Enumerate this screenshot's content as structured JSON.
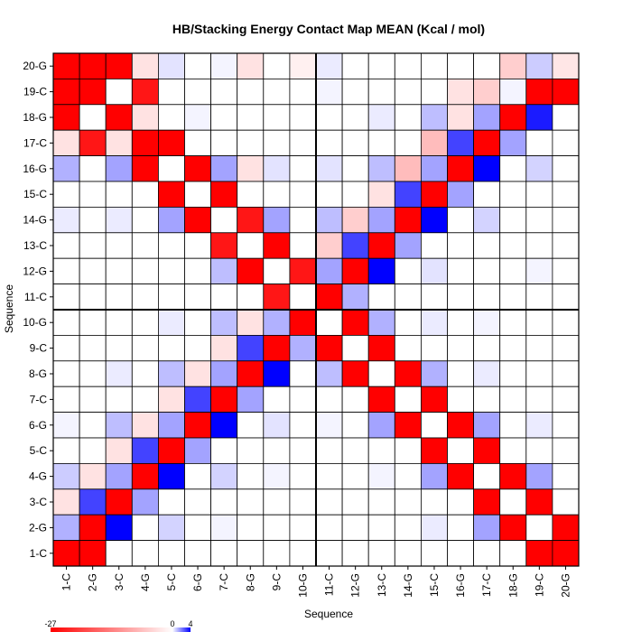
{
  "chart_data": {
    "type": "heatmap",
    "title": "HB/Stacking Energy Contact Map MEAN (Kcal / mol)",
    "xlabel": "Sequence",
    "ylabel": "Sequence",
    "labels": [
      "1-C",
      "2-G",
      "3-C",
      "4-G",
      "5-C",
      "6-G",
      "7-C",
      "8-G",
      "9-C",
      "10-G",
      "11-C",
      "12-G",
      "13-C",
      "14-G",
      "15-C",
      "16-G",
      "17-C",
      "18-G",
      "19-C",
      "20-G"
    ],
    "color_min": -27,
    "color_mid": 0,
    "color_max": 4,
    "colorbar_ticks": [
      "-27",
      "0",
      "4"
    ],
    "colors": {
      "negative": "#ff0000",
      "zero": "#ffffff",
      "positive": "#0000ff",
      "grid": "#000000"
    },
    "block_divider_after": 10,
    "values": [
      [
        -27,
        -9,
        -11,
        -0.5,
        0.3,
        0,
        0.1,
        -0.5,
        0,
        -0.2,
        0.2,
        0,
        0,
        0,
        0,
        0,
        0,
        -1,
        0.6,
        -0.4
      ],
      [
        -9,
        -27,
        0,
        -8,
        0,
        0,
        0,
        0,
        0,
        0,
        0.1,
        0,
        0,
        0,
        0,
        -0.5,
        -1,
        0.1,
        -27,
        -9
      ],
      [
        -11,
        0,
        -27,
        -0.5,
        0,
        0.1,
        0,
        0,
        0,
        0,
        0,
        0,
        0.2,
        0,
        0.8,
        -0.5,
        1.2,
        -27,
        3.5,
        0
      ],
      [
        -0.5,
        -8,
        -0.5,
        -27,
        -12,
        0,
        0,
        0,
        0,
        0,
        0,
        0,
        0,
        0,
        -1.5,
        2.8,
        -27,
        1.2,
        0,
        0
      ],
      [
        1,
        0,
        1.2,
        -12,
        0,
        -9,
        1.2,
        -0.5,
        0.3,
        0,
        0.3,
        0,
        0.8,
        -1.5,
        1.2,
        -27,
        4,
        0,
        0.5,
        0
      ],
      [
        0,
        0,
        0,
        0,
        -9,
        0,
        -11,
        0,
        0,
        0,
        0,
        0,
        -0.5,
        2.8,
        -27,
        1.2,
        0,
        0,
        0,
        0
      ],
      [
        0.2,
        0,
        0.2,
        0,
        1.2,
        -11,
        0,
        -8,
        1.2,
        0,
        0.8,
        -1,
        1.2,
        -27,
        4,
        0,
        0.5,
        0,
        0,
        0
      ],
      [
        0,
        0,
        0,
        0,
        0,
        0,
        -8,
        0,
        -11,
        0,
        -1,
        2.8,
        -27,
        1.2,
        0,
        0,
        0,
        0,
        0,
        0
      ],
      [
        0,
        0,
        0,
        0,
        0,
        0,
        0.8,
        -11,
        0,
        -8,
        1.2,
        -27,
        4,
        0,
        0.3,
        0,
        0,
        0,
        0.1,
        0
      ],
      [
        0,
        0,
        0,
        0,
        0,
        0,
        0,
        0,
        -8,
        0,
        -27,
        1,
        0,
        0,
        0,
        0,
        0,
        0,
        0,
        0
      ],
      [
        0,
        0,
        0,
        0,
        0.2,
        0,
        0.8,
        -0.5,
        1,
        -27,
        0,
        -9,
        1,
        0,
        0.2,
        0,
        0.1,
        0,
        0,
        0
      ],
      [
        0,
        0,
        0,
        0,
        0,
        0,
        -0.5,
        2.8,
        -27,
        1,
        -9,
        0,
        -9,
        0,
        0,
        0,
        0,
        0,
        0,
        0
      ],
      [
        0,
        0,
        0.2,
        0,
        0.8,
        -0.5,
        1.2,
        -27,
        4,
        0,
        0.8,
        -11,
        0,
        -9,
        1,
        0,
        0.2,
        0,
        0,
        0
      ],
      [
        0,
        0,
        0,
        0,
        -0.5,
        2.8,
        -27,
        1.2,
        0,
        0,
        0,
        0,
        -9,
        0,
        -11,
        0,
        0,
        0,
        0,
        0
      ],
      [
        0.1,
        0,
        0.8,
        -0.5,
        1.2,
        -27,
        4,
        0,
        0.3,
        0,
        0.1,
        0,
        1.2,
        -11,
        0,
        -9,
        1.2,
        0,
        0.2,
        0
      ],
      [
        0,
        0,
        -0.5,
        2.8,
        -27,
        1.2,
        0,
        0,
        0,
        0,
        0,
        0,
        0,
        0,
        -9,
        0,
        -11,
        0,
        0,
        0
      ],
      [
        0.6,
        -0.5,
        1.2,
        -27,
        4,
        0,
        0.5,
        0,
        0.1,
        0,
        0,
        0,
        0.1,
        0,
        1.2,
        -11,
        0,
        -9,
        1.2,
        0
      ],
      [
        -0.5,
        2.8,
        -27,
        1.2,
        0,
        0,
        0,
        0,
        0,
        0,
        0,
        0,
        0,
        0,
        0,
        0,
        -9,
        0,
        -11,
        0
      ],
      [
        1,
        -27,
        4,
        0,
        0.5,
        0,
        0.1,
        0,
        0,
        0,
        0,
        0,
        0,
        0,
        0.2,
        0,
        1.2,
        -11,
        0,
        -9
      ],
      [
        -27,
        -9,
        0,
        0,
        0,
        0,
        0,
        0,
        0,
        0,
        0,
        0,
        0,
        0,
        0,
        0,
        0,
        0,
        -9,
        -27
      ]
    ]
  }
}
